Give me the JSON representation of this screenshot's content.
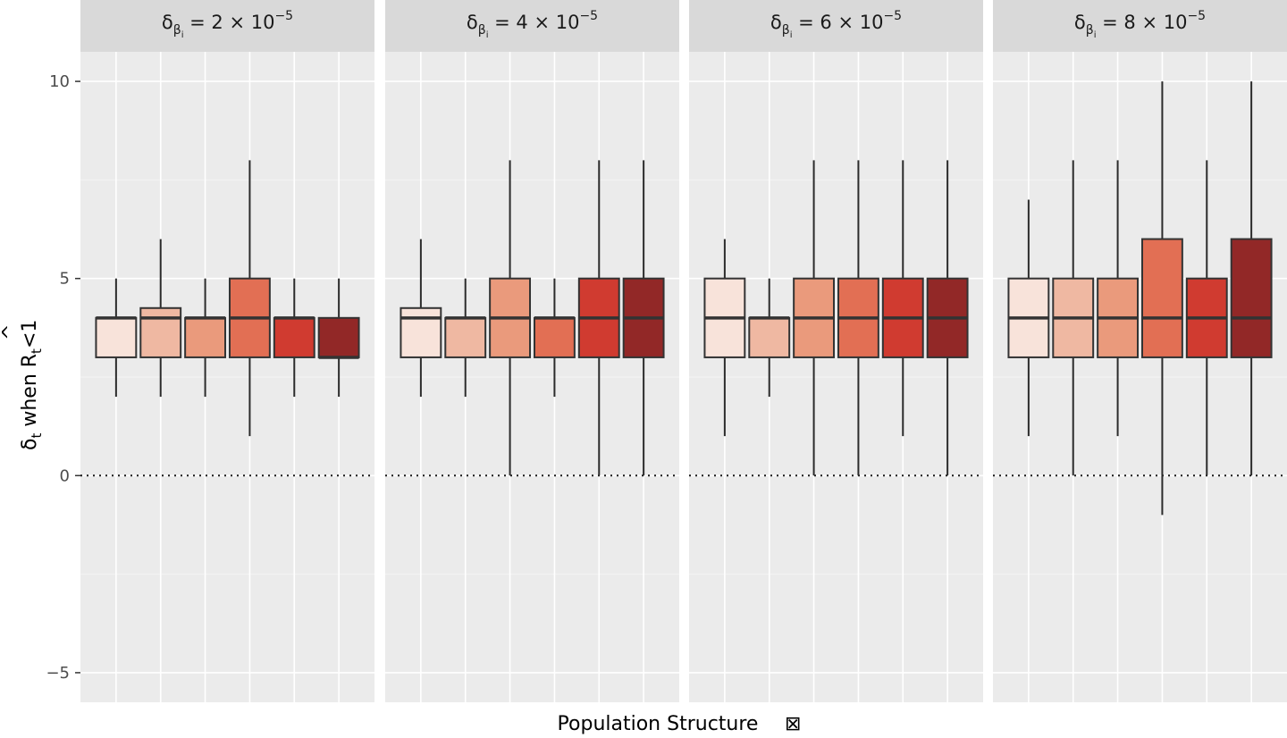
{
  "chart_data": {
    "type": "boxplot",
    "facets": [
      {
        "label": {
          "symbol": "δ",
          "sub": "β",
          "subsub": "i",
          "eq": "= 2 × 10",
          "exp": "−5"
        },
        "boxes": [
          {
            "q1": 3,
            "median": 4,
            "q3": 4,
            "whisker_low": 2,
            "whisker_high": 5
          },
          {
            "q1": 3,
            "median": 4,
            "q3": 4.25,
            "whisker_low": 2,
            "whisker_high": 6
          },
          {
            "q1": 3,
            "median": 4,
            "q3": 4,
            "whisker_low": 2,
            "whisker_high": 5
          },
          {
            "q1": 3,
            "median": 4,
            "q3": 5,
            "whisker_low": 1,
            "whisker_high": 8
          },
          {
            "q1": 3,
            "median": 4,
            "q3": 4,
            "whisker_low": 2,
            "whisker_high": 5
          },
          {
            "q1": 3,
            "median": 3,
            "q3": 4,
            "whisker_low": 2,
            "whisker_high": 5
          }
        ]
      },
      {
        "label": {
          "symbol": "δ",
          "sub": "β",
          "subsub": "i",
          "eq": "= 4 × 10",
          "exp": "−5"
        },
        "boxes": [
          {
            "q1": 3,
            "median": 4,
            "q3": 4.25,
            "whisker_low": 2,
            "whisker_high": 6
          },
          {
            "q1": 3,
            "median": 4,
            "q3": 4,
            "whisker_low": 2,
            "whisker_high": 5
          },
          {
            "q1": 3,
            "median": 4,
            "q3": 5,
            "whisker_low": 0,
            "whisker_high": 8
          },
          {
            "q1": 3,
            "median": 4,
            "q3": 4,
            "whisker_low": 2,
            "whisker_high": 5
          },
          {
            "q1": 3,
            "median": 4,
            "q3": 5,
            "whisker_low": 0,
            "whisker_high": 8
          },
          {
            "q1": 3,
            "median": 4,
            "q3": 5,
            "whisker_low": 0,
            "whisker_high": 8
          }
        ]
      },
      {
        "label": {
          "symbol": "δ",
          "sub": "β",
          "subsub": "i",
          "eq": "= 6 × 10",
          "exp": "−5"
        },
        "boxes": [
          {
            "q1": 3,
            "median": 4,
            "q3": 5,
            "whisker_low": 1,
            "whisker_high": 6
          },
          {
            "q1": 3,
            "median": 4,
            "q3": 4,
            "whisker_low": 2,
            "whisker_high": 5
          },
          {
            "q1": 3,
            "median": 4,
            "q3": 5,
            "whisker_low": 0,
            "whisker_high": 8
          },
          {
            "q1": 3,
            "median": 4,
            "q3": 5,
            "whisker_low": 0,
            "whisker_high": 8
          },
          {
            "q1": 3,
            "median": 4,
            "q3": 5,
            "whisker_low": 1,
            "whisker_high": 8
          },
          {
            "q1": 3,
            "median": 4,
            "q3": 5,
            "whisker_low": 0,
            "whisker_high": 8
          }
        ]
      },
      {
        "label": {
          "symbol": "δ",
          "sub": "β",
          "subsub": "i",
          "eq": "= 8 × 10",
          "exp": "−5"
        },
        "boxes": [
          {
            "q1": 3,
            "median": 4,
            "q3": 5,
            "whisker_low": 1,
            "whisker_high": 7
          },
          {
            "q1": 3,
            "median": 4,
            "q3": 5,
            "whisker_low": 0,
            "whisker_high": 8
          },
          {
            "q1": 3,
            "median": 4,
            "q3": 5,
            "whisker_low": 1,
            "whisker_high": 8
          },
          {
            "q1": 3,
            "median": 4,
            "q3": 6,
            "whisker_low": -1,
            "whisker_high": 10
          },
          {
            "q1": 3,
            "median": 4,
            "q3": 5,
            "whisker_low": 0,
            "whisker_high": 8
          },
          {
            "q1": 3,
            "median": 4,
            "q3": 6,
            "whisker_low": 0,
            "whisker_high": 10
          }
        ]
      }
    ],
    "box_colors": [
      "#f8e3da",
      "#efb8a2",
      "#ea9a7c",
      "#e26f54",
      "#d03b30",
      "#922827"
    ],
    "ylim": [
      -5.75,
      10.75
    ],
    "y_ticks": [
      -5,
      0,
      5,
      10
    ],
    "y_tick_labels": [
      "−5",
      "0",
      "5",
      "10"
    ],
    "reference_line": 0,
    "ylabel": {
      "d": "δ",
      "t": "t",
      "when": " when ",
      "r": "R",
      "hat": "^",
      "t2": "t",
      "lt": "<1"
    },
    "xlabel": "Population Structure",
    "xlabel_glyph": "⊠",
    "panel_background": "#ebebeb",
    "strip_background": "#d9d9d9",
    "grid": true
  }
}
